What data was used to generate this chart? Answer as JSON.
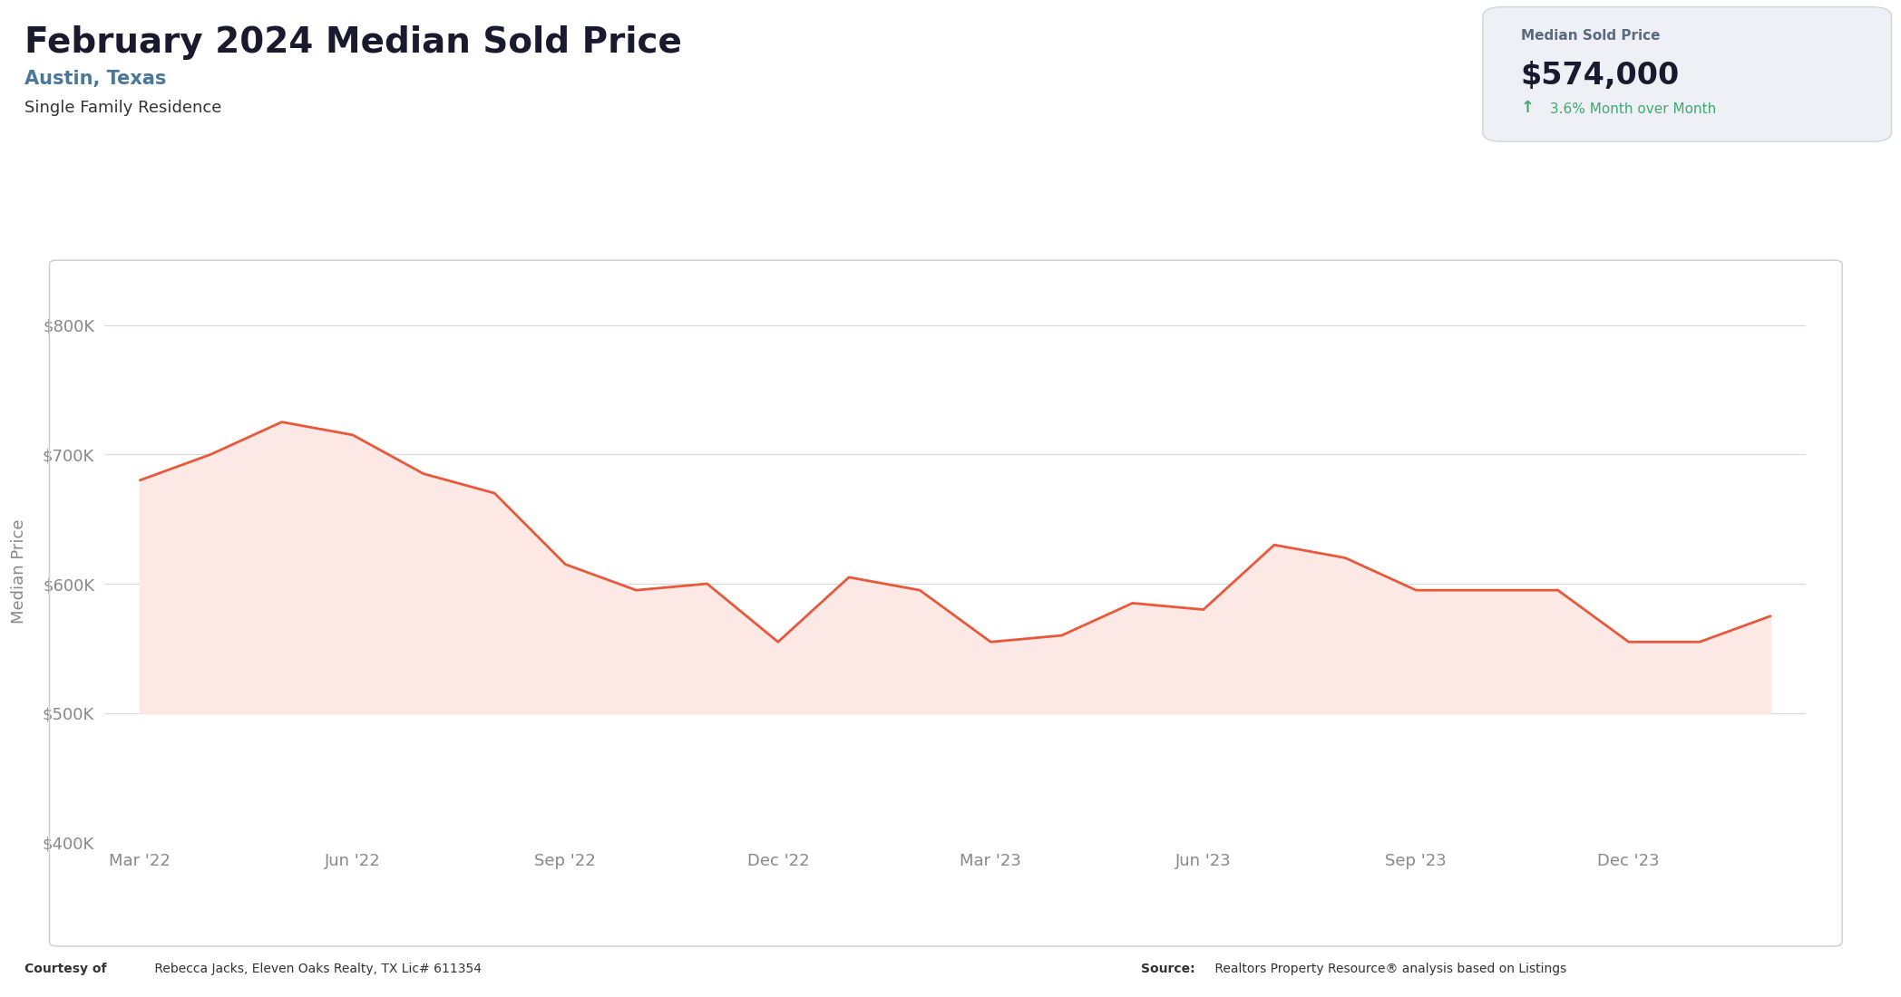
{
  "title": "February 2024 Median Sold Price",
  "subtitle": "Austin, Texas",
  "subtitle2": "Single Family Residence",
  "card_label": "Median Sold Price",
  "card_value": "$574,000",
  "card_arrow": "↑",
  "card_change": " 3.6% Month over Month",
  "ylabel": "Median Price",
  "footer_left_bold": "Courtesy of",
  "footer_left": " Rebecca Jacks, Eleven Oaks Realty, TX Lic# 611354",
  "footer_right_bold": "Source:",
  "footer_right": " Realtors Property Resource® analysis based on Listings",
  "x_labels": [
    "Mar '22",
    "Jun '22",
    "Sep '22",
    "Dec '22",
    "Mar '23",
    "Jun '23",
    "Sep '23",
    "Dec '23"
  ],
  "x_positions": [
    0,
    3,
    6,
    9,
    12,
    15,
    18,
    21
  ],
  "data_x": [
    0,
    1,
    2,
    3,
    4,
    5,
    6,
    7,
    8,
    9,
    10,
    11,
    12,
    13,
    14,
    15,
    16,
    17,
    18,
    19,
    20,
    21,
    22,
    23
  ],
  "data_y": [
    680000,
    700000,
    725000,
    715000,
    685000,
    670000,
    615000,
    595000,
    600000,
    555000,
    605000,
    595000,
    555000,
    560000,
    585000,
    580000,
    630000,
    620000,
    595000,
    595000,
    595000,
    555000,
    555000,
    575000
  ],
  "fill_baseline": 500000,
  "line_color": "#e8583a",
  "fill_color": "#fce8e4",
  "ylim": [
    400000,
    820000
  ],
  "yticks": [
    400000,
    500000,
    600000,
    700000,
    800000
  ],
  "ytick_labels": [
    "$400K",
    "$500K",
    "$600K",
    "$700K",
    "$800K"
  ],
  "bg_color": "#ffffff",
  "chart_bg": "#ffffff",
  "card_bg": "#eef0f5",
  "grid_color": "#d8d8d8",
  "title_color": "#1a1a2e",
  "subtitle_color": "#4a7899",
  "text_color": "#333333",
  "axis_label_color": "#888888"
}
